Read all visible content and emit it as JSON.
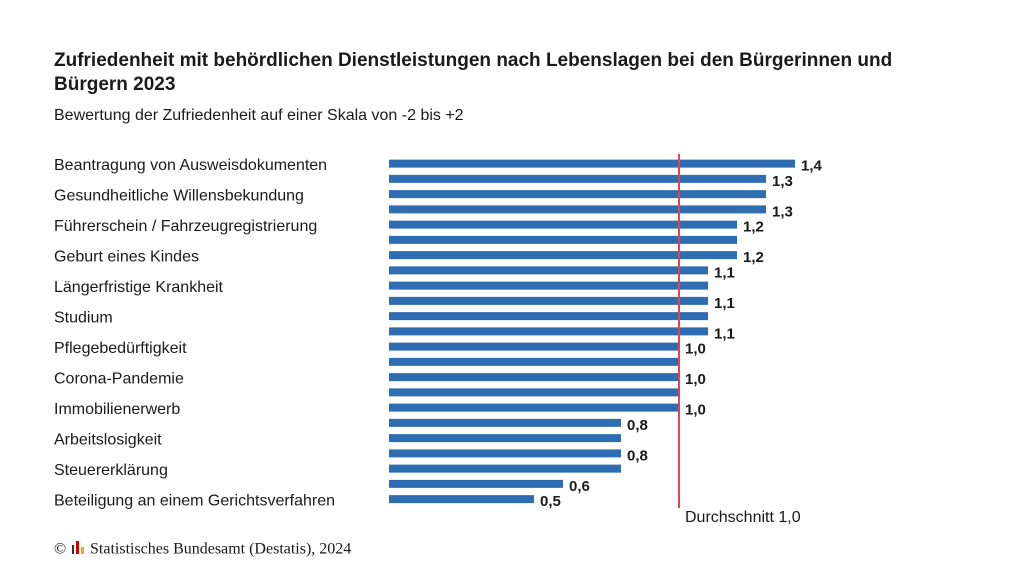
{
  "chart_data": {
    "type": "barh",
    "title": "Zufriedenheit mit behördlichen Dienstleistungen nach Lebenslagen bei den Bürgerinnen und Bürgern 2023",
    "subtitle": "Bewertung der Zufriedenheit auf einer Skala von -2 bis +2",
    "categories": [
      "Beantragung von Ausweisdokumenten",
      null,
      "Gesundheitliche Willensbekundung",
      null,
      "Führerschein / Fahrzeugregistrierung",
      null,
      "Geburt eines Kindes",
      null,
      "Längerfristige Krankheit",
      null,
      "Studium",
      null,
      "Pflegebedürftigkeit",
      null,
      "Corona-Pandemie",
      null,
      "Immobilienerwerb",
      null,
      "Arbeitslosigkeit",
      null,
      "Steuererklärung",
      null,
      "Beteiligung an einem Gerichtsverfahren"
    ],
    "values": [
      1.4,
      1.3,
      1.3,
      1.3,
      1.2,
      1.2,
      1.2,
      1.1,
      1.1,
      1.1,
      1.1,
      1.1,
      1.0,
      1.0,
      1.0,
      1.0,
      1.0,
      0.8,
      0.8,
      0.8,
      0.8,
      0.6,
      0.5
    ],
    "value_labels": [
      "1,4",
      "1,3",
      null,
      "1,3",
      "1,2",
      null,
      "1,2",
      "1,1",
      null,
      "1,1",
      null,
      "1,1",
      "1,0",
      null,
      "1,0",
      null,
      "1,0",
      "0,8",
      null,
      "0,8",
      null,
      "0,6",
      "0,5"
    ],
    "color": "#2f6db3",
    "xlim": [
      0,
      2
    ],
    "reference_line": {
      "value": 1.0,
      "label": "Durchschnitt 1,0",
      "color": "#e0454f"
    },
    "source": "Statistisches Bundesamt (Destatis), 2024"
  }
}
